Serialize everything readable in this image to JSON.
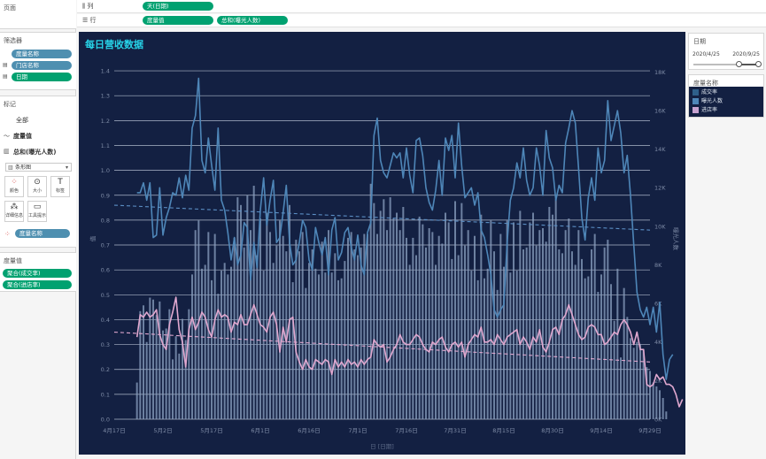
{
  "left": {
    "pages_label": "页面",
    "filters": {
      "title": "筛选器",
      "items": [
        "度量名称",
        "门店名称",
        "日期"
      ]
    },
    "marks": {
      "title": "标记",
      "all_label": "全部",
      "measure_value_label": "度量值",
      "sum_label": "总和(曝光人数)",
      "mark_type": "条形图",
      "buttons": [
        "颜色",
        "大小",
        "标签",
        "详细信息",
        "工具提示"
      ],
      "color_pill": "度量名称"
    },
    "measure_values": {
      "title": "度量值",
      "items": [
        "聚合(成交率)",
        "聚合(进店率)"
      ]
    }
  },
  "shelves": {
    "columns_label": "列",
    "columns_pill": "天(日期)",
    "rows_label": "行",
    "rows_pills": [
      "度量值",
      "总和(曝光人数)"
    ]
  },
  "chart_title": "每日营收数据",
  "right": {
    "date_filter": {
      "title": "日期",
      "start": "2020/4/25",
      "end": "2020/9/25",
      "range_fraction": [
        0.69,
        1.0
      ]
    },
    "legend": {
      "title": "度量名称",
      "items": [
        {
          "label": "成交率",
          "color": "#2e5f8a"
        },
        {
          "label": "曝光人数",
          "color": "#4e86b8"
        },
        {
          "label": "进店率",
          "color": "#c7a2d0"
        }
      ]
    }
  },
  "colors": {
    "chart_bg": "#132042",
    "bars": "#8ba0c0",
    "conv_line": "#4e86b8",
    "conv_trend": "#5b8ec4",
    "entry_line": "#e0a8cf",
    "entry_trend": "#e0a8cf",
    "grid": "#c8d2e2",
    "title": "#27d3e8"
  },
  "chart_data": {
    "type": "bar",
    "title": "每日营收数据",
    "xlabel": "日 [日期]",
    "xticks": [
      "4月17日",
      "5月2日",
      "5月17日",
      "6月1日",
      "6月16日",
      "7月1日",
      "7月16日",
      "7月31日",
      "8月15日",
      "8月30日",
      "9月14日",
      "9月29日"
    ],
    "xrange_days": [
      0,
      165
    ],
    "y_left_label": "值",
    "y_left_range": [
      0,
      1.45
    ],
    "y_left_ticks": [
      0.0,
      0.1,
      0.2,
      0.3,
      0.4,
      0.5,
      0.6,
      0.7,
      0.8,
      0.9,
      1.0,
      1.1,
      1.2,
      1.3,
      1.4
    ],
    "y_right_label": "曝光人数",
    "y_right_range": [
      0,
      18700
    ],
    "y_right_ticks": [
      "0K",
      "2K",
      "4K",
      "6K",
      "8K",
      "10K",
      "12K",
      "14K",
      "16K",
      "18K"
    ],
    "grid": true,
    "series": [
      {
        "name": "成交率",
        "type": "line",
        "axis": "left",
        "start_day": 7,
        "trend": [
          0.86,
          0.76
        ],
        "values": [
          0.91,
          0.91,
          0.95,
          0.88,
          0.95,
          0.73,
          0.74,
          0.93,
          0.74,
          0.81,
          0.85,
          0.91,
          0.9,
          0.97,
          0.89,
          0.98,
          0.92,
          1.17,
          1.22,
          1.37,
          1.04,
          0.99,
          1.13,
          1.02,
          0.92,
          1.17,
          0.88,
          0.84,
          0.75,
          0.64,
          0.73,
          0.62,
          0.66,
          0.79,
          0.77,
          0.56,
          0.71,
          0.61,
          0.84,
          0.97,
          0.78,
          0.88,
          0.96,
          0.71,
          0.73,
          0.83,
          0.94,
          0.71,
          0.62,
          0.64,
          0.71,
          0.8,
          0.77,
          0.64,
          0.6,
          0.77,
          0.71,
          0.66,
          0.73,
          0.58,
          0.76,
          0.81,
          0.64,
          0.67,
          0.75,
          0.77,
          0.69,
          0.64,
          0.74,
          0.62,
          0.58,
          0.75,
          0.79,
          1.14,
          1.21,
          1.04,
          0.99,
          0.97,
          1.02,
          1.07,
          1.05,
          1.07,
          0.97,
          1.09,
          0.98,
          0.91,
          1.12,
          1.13,
          1.06,
          0.93,
          0.87,
          0.84,
          0.92,
          1.04,
          0.9,
          1.13,
          1.08,
          1.14,
          0.97,
          1.19,
          1.02,
          0.89,
          0.91,
          0.93,
          0.86,
          0.91,
          0.76,
          0.73,
          0.66,
          0.58,
          0.44,
          0.41,
          0.44,
          0.46,
          0.71,
          0.88,
          0.93,
          1.03,
          0.97,
          1.09,
          0.96,
          0.9,
          0.93,
          1.09,
          1.02,
          0.9,
          1.16,
          1.05,
          1.01,
          0.88,
          0.94,
          0.91,
          1.11,
          1.17,
          1.24,
          1.19,
          1.01,
          0.81,
          0.72,
          0.89,
          0.97,
          0.88,
          1.09,
          0.99,
          1.04,
          1.28,
          1.12,
          1.18,
          1.24,
          1.15,
          0.99,
          1.06,
          0.9,
          0.7,
          0.51,
          0.44,
          0.41,
          0.45,
          0.38,
          0.45,
          0.35,
          0.47,
          0.26,
          0.16,
          0.24,
          0.26
        ]
      },
      {
        "name": "进店率",
        "type": "line",
        "axis": "left",
        "start_day": 7,
        "trend": [
          0.35,
          0.23
        ],
        "values": [
          0.33,
          0.42,
          0.41,
          0.43,
          0.41,
          0.42,
          0.44,
          0.34,
          0.3,
          0.28,
          0.38,
          0.43,
          0.49,
          0.36,
          0.31,
          0.21,
          0.36,
          0.41,
          0.36,
          0.39,
          0.43,
          0.41,
          0.36,
          0.33,
          0.4,
          0.44,
          0.41,
          0.42,
          0.41,
          0.35,
          0.39,
          0.38,
          0.42,
          0.38,
          0.38,
          0.42,
          0.46,
          0.42,
          0.38,
          0.37,
          0.35,
          0.41,
          0.43,
          0.38,
          0.27,
          0.37,
          0.31,
          0.4,
          0.41,
          0.27,
          0.23,
          0.2,
          0.24,
          0.21,
          0.2,
          0.24,
          0.23,
          0.22,
          0.24,
          0.23,
          0.18,
          0.24,
          0.21,
          0.23,
          0.21,
          0.24,
          0.22,
          0.23,
          0.21,
          0.24,
          0.22,
          0.24,
          0.25,
          0.32,
          0.3,
          0.29,
          0.3,
          0.23,
          0.25,
          0.28,
          0.3,
          0.34,
          0.31,
          0.3,
          0.3,
          0.32,
          0.34,
          0.33,
          0.3,
          0.28,
          0.27,
          0.31,
          0.3,
          0.32,
          0.33,
          0.29,
          0.27,
          0.3,
          0.31,
          0.29,
          0.31,
          0.25,
          0.3,
          0.32,
          0.34,
          0.33,
          0.37,
          0.31,
          0.31,
          0.32,
          0.3,
          0.34,
          0.32,
          0.3,
          0.33,
          0.34,
          0.35,
          0.36,
          0.3,
          0.33,
          0.31,
          0.28,
          0.33,
          0.31,
          0.36,
          0.29,
          0.27,
          0.31,
          0.36,
          0.37,
          0.34,
          0.4,
          0.42,
          0.46,
          0.42,
          0.38,
          0.34,
          0.32,
          0.33,
          0.37,
          0.38,
          0.37,
          0.34,
          0.34,
          0.3,
          0.31,
          0.33,
          0.35,
          0.34,
          0.38,
          0.4,
          0.38,
          0.35,
          0.3,
          0.35,
          0.28,
          0.28,
          0.14,
          0.13,
          0.14,
          0.18,
          0.16,
          0.17,
          0.14,
          0.14,
          0.13,
          0.1,
          0.05,
          0.08
        ]
      },
      {
        "name": "曝光人数",
        "type": "bar",
        "axis": "right",
        "start_day": 7,
        "values": [
          1900,
          5600,
          5900,
          4000,
          6300,
          6200,
          5400,
          6100,
          4600,
          4700,
          5700,
          3100,
          4300,
          3400,
          5200,
          4100,
          5700,
          7500,
          9800,
          10300,
          7800,
          8000,
          9700,
          7200,
          9600,
          6500,
          7700,
          8100,
          7500,
          7900,
          9400,
          11500,
          11100,
          8900,
          11600,
          9800,
          12100,
          8500,
          10400,
          7700,
          10700,
          9700,
          8100,
          9000,
          10300,
          9500,
          8700,
          11100,
          7100,
          9300,
          8700,
          9700,
          6800,
          8100,
          8800,
          7800,
          7500,
          9200,
          7600,
          9800,
          7600,
          8600,
          7200,
          7300,
          8200,
          9400,
          9700,
          8800,
          8500,
          8900,
          9600,
          9600,
          12200,
          11200,
          9600,
          10800,
          11400,
          9800,
          11500,
          10400,
          10700,
          9800,
          11000,
          9400,
          8000,
          9400,
          8500,
          10500,
          10100,
          8900,
          9900,
          9700,
          8000,
          9500,
          9100,
          10700,
          10200,
          8300,
          11300,
          8500,
          11200,
          9000,
          9800,
          7700,
          9500,
          7200,
          10600,
          7300,
          7800,
          10300,
          8700,
          6700,
          9600,
          7900,
          10300,
          7600,
          10200,
          7700,
          10800,
          8800,
          8900,
          10200,
          10700,
          9000,
          9800,
          9900,
          9200,
          11000,
          10600,
          11400,
          8800,
          8600,
          9800,
          10400,
          8700,
          8000,
          9800,
          8300,
          7300,
          7400,
          8800,
          9600,
          6600,
          7500,
          8900,
          9300,
          7000,
          5100,
          7800,
          3200,
          6800,
          5300,
          4200,
          3700,
          4000,
          3900,
          3600,
          2700,
          2500,
          1900,
          1700,
          1500,
          1100,
          400
        ]
      }
    ]
  }
}
